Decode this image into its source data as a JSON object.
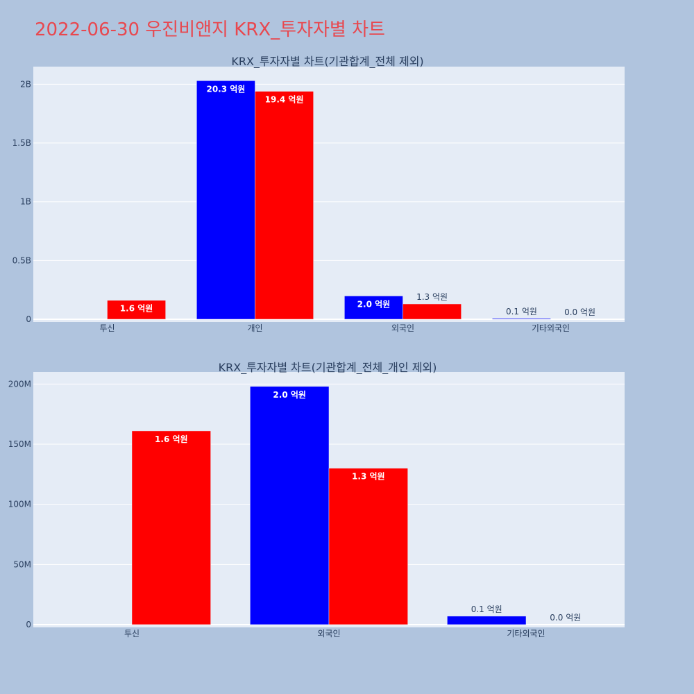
{
  "page": {
    "title": "2022-06-30 우진비앤지 KRX_투자자별 차트",
    "background": "#b0c4de",
    "plot_background": "#e5ecf6",
    "title_color": "#e8484f"
  },
  "chart_data": [
    {
      "type": "bar",
      "title": "KRX_투자자별 차트(기관합계_전체 제외)",
      "categories": [
        "투신",
        "개인",
        "외국인",
        "기타외국인"
      ],
      "ylim": [
        0,
        2150000000
      ],
      "yticks": [
        0,
        500000000,
        1000000000,
        1500000000,
        2000000000
      ],
      "ytick_labels": [
        "0",
        "0.5B",
        "1B",
        "1.5B",
        "2B"
      ],
      "grid": true,
      "legend": "none",
      "series": [
        {
          "color": "#0000ff",
          "values": [
            0,
            2030000000,
            198000000,
            7000000
          ],
          "labels": [
            "",
            "20.3 억원",
            "2.0 억원",
            "0.1 억원"
          ]
        },
        {
          "color": "#ff0000",
          "values": [
            161000000,
            1940000000,
            130000000,
            0
          ],
          "labels": [
            "1.6 억원",
            "19.4 억원",
            "1.3 억원",
            "0.0 억원"
          ]
        }
      ]
    },
    {
      "type": "bar",
      "title": "KRX_투자자별 차트(기관합계_전체_개인 제외)",
      "categories": [
        "투신",
        "외국인",
        "기타외국인"
      ],
      "ylim": [
        0,
        210000000
      ],
      "yticks": [
        0,
        50000000,
        100000000,
        150000000,
        200000000
      ],
      "ytick_labels": [
        "0",
        "50M",
        "100M",
        "150M",
        "200M"
      ],
      "grid": true,
      "legend": "none",
      "series": [
        {
          "color": "#0000ff",
          "values": [
            0,
            198000000,
            7000000
          ],
          "labels": [
            "",
            "2.0 억원",
            "0.1 억원"
          ]
        },
        {
          "color": "#ff0000",
          "values": [
            161000000,
            130000000,
            0
          ],
          "labels": [
            "1.6 억원",
            "1.3 억원",
            "0.0 억원"
          ]
        }
      ]
    }
  ]
}
